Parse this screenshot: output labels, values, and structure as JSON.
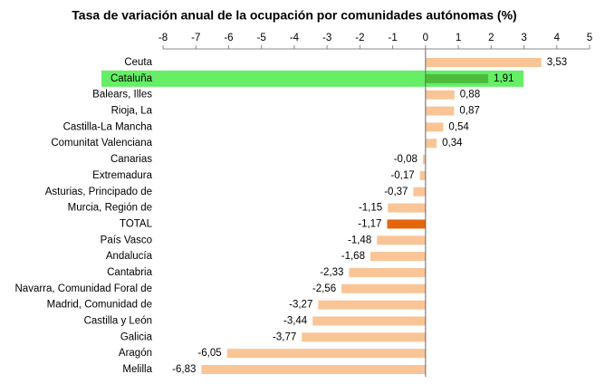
{
  "chart_data": {
    "type": "bar",
    "orientation": "horizontal",
    "title": "Tasa de variación anual de la ocupación por comunidades autónomas (%)",
    "categories": [
      "Ceuta",
      "Cataluña",
      "Balears, Illes",
      "Rioja, La",
      "Castilla-La Mancha",
      "Comunitat Valenciana",
      "Canarias",
      "Extremadura",
      "Asturias, Principado de",
      "Murcia, Región de",
      "TOTAL",
      "País Vasco",
      "Andalucía",
      "Cantabria",
      "Navarra, Comunidad  Foral de",
      "Madrid, Comunidad de",
      "Castilla y León",
      "Galicia",
      "Aragón",
      "Melilla"
    ],
    "values": [
      3.53,
      1.91,
      0.88,
      0.87,
      0.54,
      0.34,
      -0.08,
      -0.17,
      -0.37,
      -1.15,
      -1.17,
      -1.48,
      -1.68,
      -2.33,
      -2.56,
      -3.27,
      -3.44,
      -3.77,
      -6.05,
      -6.83
    ],
    "value_labels": [
      "3,53",
      "1,91",
      "0,88",
      "0,87",
      "0,54",
      "0,34",
      "-0,08",
      "-0,17",
      "-0,37",
      "-1,15",
      "-1,17",
      "-1,48",
      "-1,68",
      "-2,33",
      "-2,56",
      "-3,27",
      "-3,44",
      "-3,77",
      "-6,05",
      "-6,83"
    ],
    "colors": [
      "#fac596",
      "#4cbb3c",
      "#fac596",
      "#fac596",
      "#fac596",
      "#fac596",
      "#fac596",
      "#fac596",
      "#fac596",
      "#fac596",
      "#e4650c",
      "#fac596",
      "#fac596",
      "#fac596",
      "#fac596",
      "#fac596",
      "#fac596",
      "#fac596",
      "#fac596",
      "#fac596"
    ],
    "highlight_index": 1,
    "highlight_color": "#66ee66",
    "xlim": [
      -8,
      5
    ],
    "xticks": [
      -8,
      -7,
      -6,
      -5,
      -4,
      -3,
      -2,
      -1,
      0,
      1,
      2,
      3,
      4,
      5
    ]
  }
}
